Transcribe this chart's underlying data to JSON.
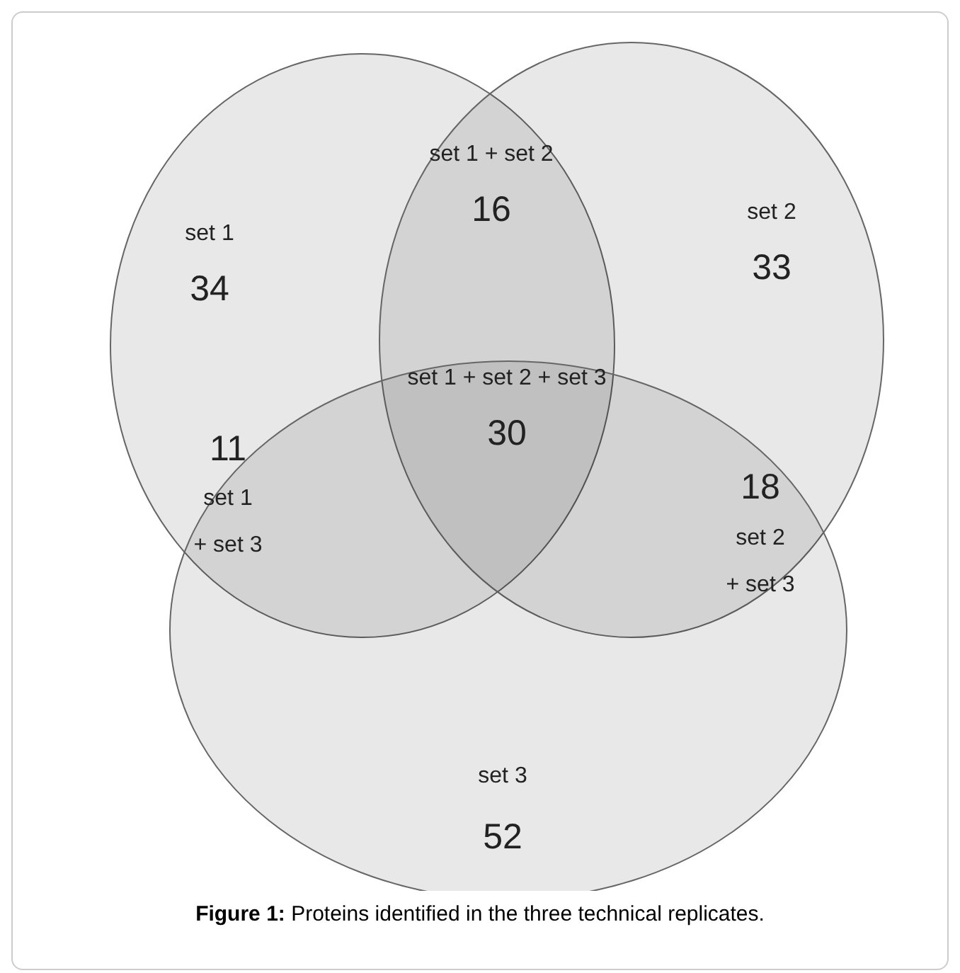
{
  "chart_data": {
    "type": "other",
    "title": "Figure 1:",
    "subtitle": "Proteins identified in the three technical replicates.",
    "categories": [
      "set 1",
      "set 1 + set 2",
      "set 2",
      "set 1 + set 2 + set 3",
      "set 1 + set 3",
      "set 2 + set 3",
      "set 3"
    ],
    "values": [
      34,
      16,
      33,
      30,
      11,
      18,
      52
    ],
    "data_labels": true
  }
}
